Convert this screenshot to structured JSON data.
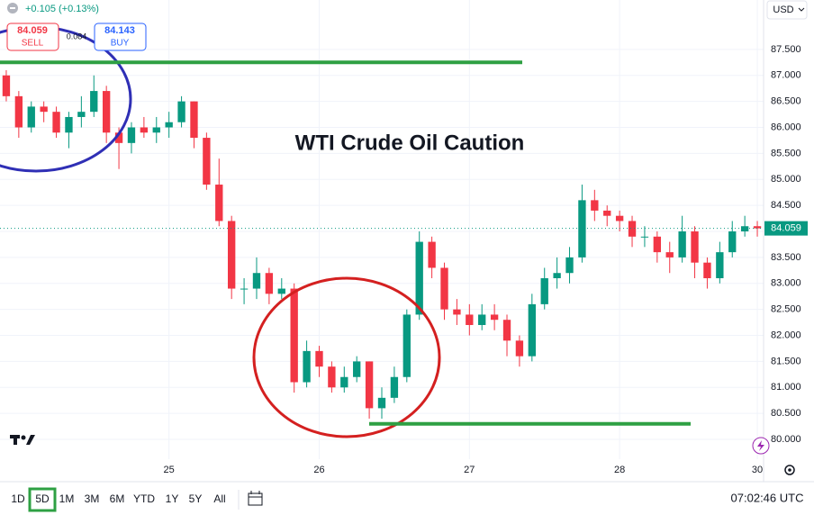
{
  "chart_data": {
    "type": "candlestick",
    "title": "WTI Crude Oil Caution",
    "currency": "USD",
    "change": "+0.105 (+0.13%)",
    "sell": {
      "price": 84.059,
      "label": "SELL"
    },
    "buy": {
      "price": 84.143,
      "label": "BUY"
    },
    "spread": 0.084,
    "last_price": 84.059,
    "up_color": "#089981",
    "down_color": "#f23645",
    "grid": true,
    "ylim": [
      79.62,
      88.45
    ],
    "yticks": [
      {
        "value": 80,
        "label": "80.000"
      },
      {
        "value": 80.5,
        "label": "80.500"
      },
      {
        "value": 81,
        "label": "81.000"
      },
      {
        "value": 81.5,
        "label": "81.500"
      },
      {
        "value": 82,
        "label": "82.000"
      },
      {
        "value": 82.5,
        "label": "82.500"
      },
      {
        "value": 83,
        "label": "83.000"
      },
      {
        "value": 83.5,
        "label": "83.500"
      },
      {
        "value": 84,
        "label": "84.000"
      },
      {
        "value": 84.5,
        "label": "84.500"
      },
      {
        "value": 85,
        "label": "85.000"
      },
      {
        "value": 85.5,
        "label": "85.500"
      },
      {
        "value": 86,
        "label": "86.000"
      },
      {
        "value": 86.5,
        "label": "86.500"
      },
      {
        "value": 87,
        "label": "87.000"
      },
      {
        "value": 87.5,
        "label": "87.500"
      }
    ],
    "categories": [
      null,
      null,
      null,
      null,
      null,
      null,
      null,
      null,
      null,
      null,
      null,
      null,
      null,
      "25",
      null,
      null,
      null,
      null,
      null,
      null,
      null,
      null,
      null,
      null,
      null,
      "26",
      null,
      null,
      null,
      null,
      null,
      null,
      null,
      null,
      null,
      null,
      null,
      "27",
      null,
      null,
      null,
      null,
      null,
      null,
      null,
      null,
      null,
      null,
      null,
      "28",
      null,
      null,
      null,
      null,
      null,
      null,
      null,
      null,
      null,
      null,
      "30"
    ],
    "open": [
      87.0,
      86.6,
      86.0,
      86.4,
      86.3,
      85.9,
      86.2,
      86.3,
      86.7,
      85.9,
      85.7,
      86.0,
      85.9,
      86.0,
      86.1,
      86.5,
      85.8,
      84.9,
      84.2,
      82.9,
      82.9,
      83.2,
      82.8,
      82.9,
      81.1,
      81.7,
      81.4,
      81.0,
      81.2,
      81.5,
      80.6,
      80.8,
      81.2,
      82.4,
      83.8,
      83.3,
      82.5,
      82.4,
      82.2,
      82.4,
      82.3,
      81.9,
      81.6,
      82.6,
      83.1,
      83.2,
      83.5,
      84.6,
      84.4,
      84.3,
      84.2,
      83.9,
      83.9,
      83.6,
      83.5,
      84.0,
      83.4,
      83.1,
      83.6,
      84.0,
      84.1
    ],
    "high": [
      87.1,
      86.7,
      86.5,
      86.5,
      86.4,
      86.3,
      86.6,
      87.0,
      86.8,
      86.0,
      86.1,
      86.2,
      86.2,
      86.3,
      86.6,
      86.5,
      85.9,
      85.4,
      84.3,
      83.1,
      83.5,
      83.3,
      83.1,
      83.0,
      81.9,
      81.8,
      81.5,
      81.4,
      81.6,
      81.5,
      81.0,
      81.4,
      82.5,
      84.0,
      83.9,
      83.4,
      82.7,
      82.6,
      82.6,
      82.6,
      82.4,
      82.0,
      82.8,
      83.3,
      83.5,
      83.7,
      84.9,
      84.8,
      84.5,
      84.4,
      84.3,
      84.1,
      84.0,
      83.8,
      84.3,
      84.1,
      83.5,
      83.8,
      84.2,
      84.3,
      84.2
    ],
    "low": [
      86.5,
      85.8,
      85.9,
      86.1,
      85.8,
      85.6,
      86.0,
      86.2,
      85.7,
      85.2,
      85.5,
      85.8,
      85.7,
      85.8,
      86.0,
      85.6,
      84.8,
      84.1,
      82.7,
      82.6,
      82.7,
      82.6,
      82.7,
      80.9,
      81.0,
      81.2,
      80.9,
      80.9,
      81.1,
      80.4,
      80.4,
      80.7,
      81.1,
      82.3,
      83.1,
      82.3,
      82.2,
      82.0,
      82.1,
      82.1,
      81.6,
      81.4,
      81.5,
      82.5,
      82.9,
      83.0,
      83.4,
      84.2,
      84.1,
      84.0,
      83.7,
      83.7,
      83.4,
      83.2,
      83.4,
      83.1,
      82.9,
      83.0,
      83.5,
      83.9,
      83.9
    ],
    "close": [
      86.6,
      86.0,
      86.4,
      86.3,
      85.9,
      86.2,
      86.3,
      86.7,
      85.9,
      85.7,
      86.0,
      85.9,
      86.0,
      86.1,
      86.5,
      85.8,
      84.9,
      84.2,
      82.9,
      82.9,
      83.2,
      82.8,
      82.9,
      81.1,
      81.7,
      81.4,
      81.0,
      81.2,
      81.5,
      80.6,
      80.8,
      81.2,
      82.4,
      83.8,
      83.3,
      82.5,
      82.4,
      82.2,
      82.4,
      82.3,
      81.9,
      81.6,
      82.6,
      83.1,
      83.2,
      83.5,
      84.6,
      84.4,
      84.3,
      84.2,
      83.9,
      83.9,
      83.6,
      83.5,
      84.0,
      83.4,
      83.1,
      83.6,
      84.0,
      84.1,
      84.059
    ],
    "levels": [
      {
        "value": 87.25,
        "color": "#2ea043"
      },
      {
        "value": 80.3,
        "color": "#2ea043"
      }
    ],
    "ranges": [
      "1D",
      "5D",
      "1M",
      "3M",
      "6M",
      "YTD",
      "1Y",
      "5Y",
      "All"
    ],
    "selected_range": "5D",
    "time": "07:02:46 UTC"
  }
}
